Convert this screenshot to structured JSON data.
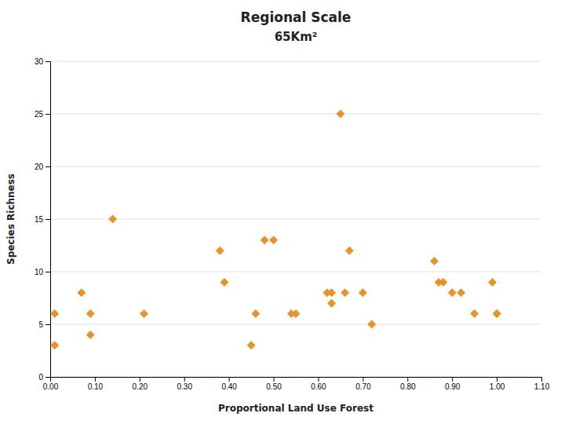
{
  "chart_data": {
    "type": "scatter",
    "title": "Regional Scale",
    "subtitle": "65Km²",
    "x_label": "Proportional Land Use Forest",
    "y_label": "Species Richness",
    "x": [
      0.01,
      0.01,
      0.07,
      0.09,
      0.09,
      0.14,
      0.21,
      0.38,
      0.39,
      0.45,
      0.46,
      0.48,
      0.5,
      0.54,
      0.55,
      0.62,
      0.63,
      0.63,
      0.65,
      0.66,
      0.67,
      0.7,
      0.72,
      0.86,
      0.87,
      0.88,
      0.9,
      0.92,
      0.95,
      0.99,
      1.0,
      1.0
    ],
    "values": [
      3,
      6,
      8,
      6,
      4,
      15,
      6,
      12,
      9,
      3,
      6,
      13,
      13,
      6,
      6,
      8,
      8,
      7,
      25,
      8,
      12,
      8,
      5,
      11,
      9,
      9,
      8,
      8,
      6,
      9,
      6,
      6
    ],
    "color": "#E8922A",
    "marker": "diamond",
    "xlim": [
      0.0,
      1.1
    ],
    "ylim": [
      0,
      30
    ],
    "xticks": [
      {
        "value": 0.0,
        "label": "0.00"
      },
      {
        "value": 0.1,
        "label": "0.10"
      },
      {
        "value": 0.2,
        "label": "0.20"
      },
      {
        "value": 0.3,
        "label": "0.30"
      },
      {
        "value": 0.4,
        "label": "0.40"
      },
      {
        "value": 0.5,
        "label": "0.50"
      },
      {
        "value": 0.6,
        "label": "0.60"
      },
      {
        "value": 0.7,
        "label": "0.70"
      },
      {
        "value": 0.8,
        "label": "0.80"
      },
      {
        "value": 0.9,
        "label": "0.90"
      },
      {
        "value": 1.0,
        "label": "1.00"
      },
      {
        "value": 1.1,
        "label": "1.10"
      }
    ],
    "yticks": [
      0,
      5,
      10,
      15,
      20,
      25,
      30
    ],
    "grid": true
  }
}
